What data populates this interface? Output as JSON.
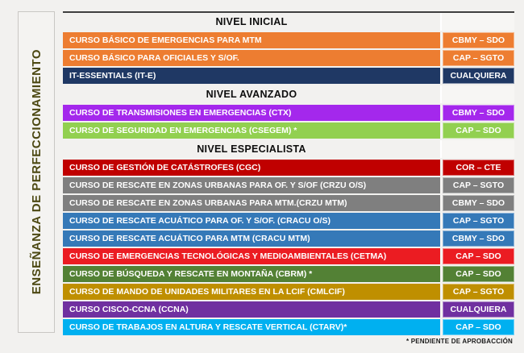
{
  "sidebar": {
    "label": "ENSEÑANZA DE PERFECCIONAMIENTO"
  },
  "footnote": "* PENDIENTE DE APROBACCIÓN",
  "colors": {
    "orange": "#ED7D31",
    "navy": "#1F3864",
    "violet": "#A428EC",
    "light_green": "#92D050",
    "dark_red": "#C00000",
    "gray": "#7F7F7F",
    "steel_blue": "#3579B8",
    "red": "#EB1C22",
    "dark_green": "#538135",
    "gold": "#BF8F00",
    "purple": "#7030A0",
    "light_blue": "#00B0F0"
  },
  "sections": [
    {
      "title": "NIVEL INICIAL",
      "courses": [
        {
          "name": "CURSO BÁSICO DE EMERGENCIAS PARA MTM",
          "rank": "CBMY – SDO",
          "color": "#ED7D31"
        },
        {
          "name": "CURSO BÁSICO PARA OFICIALES Y S/OF.",
          "rank": "CAP – SGTO",
          "color": "#ED7D31"
        },
        {
          "name": "IT-ESSENTIALS (IT-E)",
          "rank": "CUALQUIERA",
          "color": "#1F3864"
        }
      ]
    },
    {
      "title": "NIVEL AVANZADO",
      "courses": [
        {
          "name": "CURSO DE TRANSMISIONES EN EMERGENCIAS (CTX)",
          "rank": "CBMY – SDO",
          "color": "#A428EC"
        },
        {
          "name": "CURSO DE SEGURIDAD EN EMERGENCIAS (CSEGEM) *",
          "rank": "CAP – SDO",
          "color": "#92D050"
        }
      ]
    },
    {
      "title": "NIVEL ESPECIALISTA",
      "courses": [
        {
          "name": "CURSO DE GESTIÓN DE CATÁSTROFES (CGC)",
          "rank": "COR – CTE",
          "color": "#C00000"
        },
        {
          "name": "CURSO DE RESCATE EN ZONAS URBANAS PARA OF. Y S/OF (CRZU O/S)",
          "rank": "CAP – SGTO",
          "color": "#7F7F7F"
        },
        {
          "name": "CURSO DE RESCATE EN ZONAS URBANAS PARA MTM.(CRZU MTM)",
          "rank": "CBMY – SDO",
          "color": "#7F7F7F"
        },
        {
          "name": "CURSO DE RESCATE ACUÁTICO PARA OF. Y S/OF. (CRACU O/S)",
          "rank": "CAP – SGTO",
          "color": "#3579B8"
        },
        {
          "name": "CURSO DE RESCATE ACUÁTICO PARA MTM (CRACU MTM)",
          "rank": "CBMY – SDO",
          "color": "#3579B8"
        },
        {
          "name": "CURSO DE EMERGENCIAS TECNOLÓGICAS Y MEDIOAMBIENTALES (CETMA)",
          "rank": "CAP – SDO",
          "color": "#EB1C22"
        },
        {
          "name": "CURSO DE BÚSQUEDA Y RESCATE EN MONTAÑA (CBRM) *",
          "rank": "CAP – SDO",
          "color": "#538135"
        },
        {
          "name": "CURSO DE MANDO DE UNIDADES MILITARES EN LA LCIF (CMLCIF)",
          "rank": "CAP – SGTO",
          "color": "#BF8F00"
        },
        {
          "name": "CURSO CISCO-CCNA (CCNA)",
          "rank": "CUALQUIERA",
          "color": "#7030A0"
        },
        {
          "name": "CURSO DE TRABAJOS EN ALTURA Y RESCATE VERTICAL  (CTARV)*",
          "rank": "CAP – SDO",
          "color": "#00B0F0"
        }
      ]
    }
  ]
}
